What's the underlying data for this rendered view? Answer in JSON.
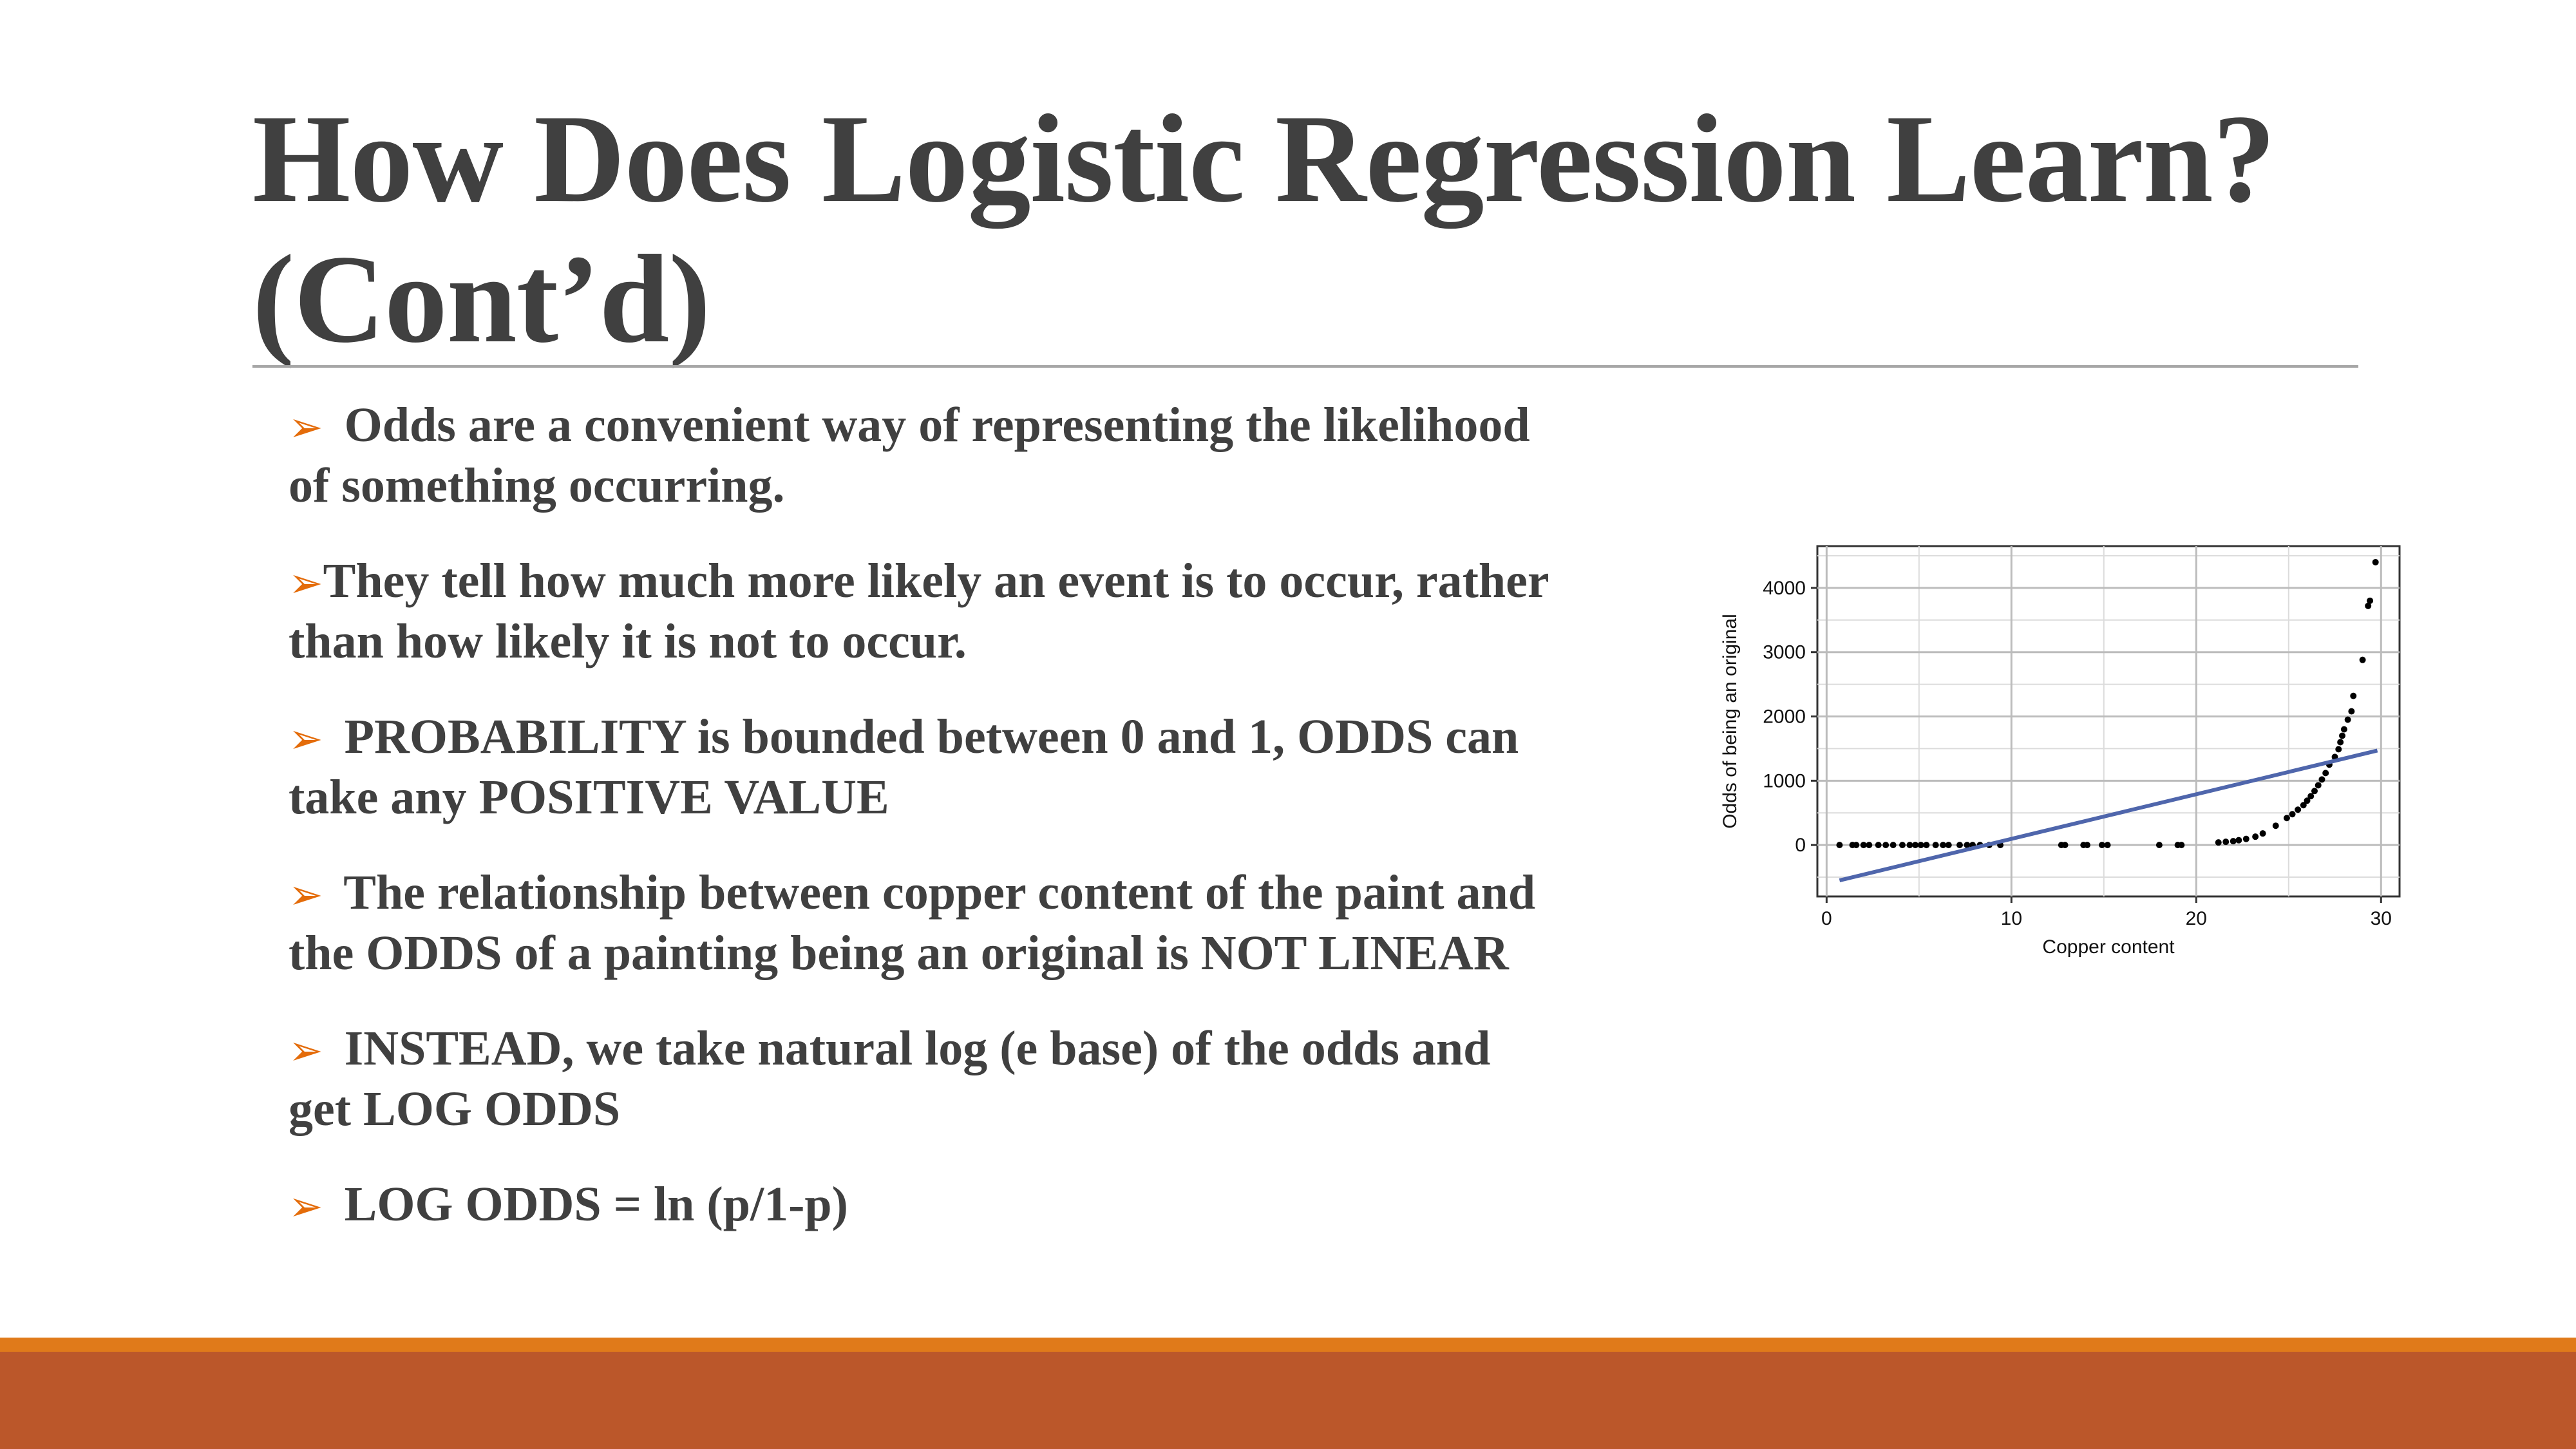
{
  "slide": {
    "title_lines": [
      "How Does Logistic Regression Learn?",
      "(Cont’d)"
    ],
    "bullets": [
      {
        "lines": [
          " Odds are a convenient way of representing the likelihood",
          "of something occurring."
        ]
      },
      {
        "lines": [
          "They tell how much more likely an event is to occur, rather",
          "than how likely it is not to occur."
        ]
      },
      {
        "lines": [
          " PROBABILITY is bounded between 0 and 1, ODDS can",
          "take any POSITIVE VALUE"
        ]
      },
      {
        "lines": [
          " The relationship between copper content of the paint and",
          "the ODDS of a painting being an original is NOT LINEAR"
        ]
      },
      {
        "lines": [
          " INSTEAD, we take natural log (e base) of the odds and",
          "get LOG ODDS"
        ]
      },
      {
        "lines": [
          " LOG ODDS = ln (p/1-p)"
        ]
      }
    ],
    "bullet_icon": "arrow-bullet-icon",
    "colors": {
      "title": "#404040",
      "accent": "#e46c0a",
      "footer": "#bb572a",
      "footer_stripe": "#e07a1a"
    }
  },
  "chart_data": {
    "type": "scatter",
    "xlabel": "Copper content",
    "ylabel": "Odds of being an original",
    "xlim": [
      -0.5,
      31
    ],
    "ylim": [
      -800,
      4650
    ],
    "xticks": [
      0,
      10,
      20,
      30
    ],
    "yticks": [
      0,
      1000,
      2000,
      3000,
      4000
    ],
    "grid": true,
    "series": [
      {
        "kind": "points",
        "color": "#000000",
        "points": [
          [
            0.7,
            0
          ],
          [
            1.4,
            0
          ],
          [
            1.6,
            0
          ],
          [
            2.0,
            0
          ],
          [
            2.3,
            0
          ],
          [
            2.8,
            0
          ],
          [
            3.2,
            0
          ],
          [
            3.6,
            0
          ],
          [
            4.1,
            0
          ],
          [
            4.5,
            0
          ],
          [
            4.8,
            0
          ],
          [
            5.1,
            0
          ],
          [
            5.4,
            0
          ],
          [
            5.9,
            0
          ],
          [
            6.3,
            0
          ],
          [
            6.6,
            0
          ],
          [
            7.2,
            0
          ],
          [
            7.6,
            0
          ],
          [
            7.9,
            0
          ],
          [
            8.3,
            0
          ],
          [
            8.8,
            0
          ],
          [
            9.4,
            0
          ],
          [
            12.7,
            0
          ],
          [
            12.9,
            0
          ],
          [
            13.9,
            0
          ],
          [
            14.1,
            0
          ],
          [
            14.9,
            0
          ],
          [
            15.2,
            0
          ],
          [
            18.0,
            0
          ],
          [
            19.0,
            0
          ],
          [
            19.2,
            0
          ],
          [
            21.2,
            40
          ],
          [
            21.6,
            50
          ],
          [
            22.0,
            60
          ],
          [
            22.3,
            75
          ],
          [
            22.7,
            95
          ],
          [
            23.2,
            130
          ],
          [
            23.6,
            180
          ],
          [
            24.3,
            300
          ],
          [
            24.9,
            420
          ],
          [
            25.2,
            480
          ],
          [
            25.5,
            550
          ],
          [
            25.8,
            620
          ],
          [
            26.0,
            690
          ],
          [
            26.2,
            760
          ],
          [
            26.4,
            840
          ],
          [
            26.6,
            930
          ],
          [
            26.8,
            1020
          ],
          [
            27.0,
            1120
          ],
          [
            27.2,
            1250
          ],
          [
            27.5,
            1370
          ],
          [
            27.7,
            1490
          ],
          [
            27.8,
            1600
          ],
          [
            27.9,
            1700
          ],
          [
            28.0,
            1800
          ],
          [
            28.2,
            1950
          ],
          [
            28.4,
            2080
          ],
          [
            28.5,
            2320
          ],
          [
            29.0,
            2880
          ],
          [
            29.3,
            3720
          ],
          [
            29.4,
            3800
          ],
          [
            29.7,
            4400
          ]
        ]
      },
      {
        "kind": "line",
        "color": "#4f66ac",
        "points": [
          [
            0.7,
            -550
          ],
          [
            29.8,
            1470
          ]
        ]
      }
    ]
  }
}
